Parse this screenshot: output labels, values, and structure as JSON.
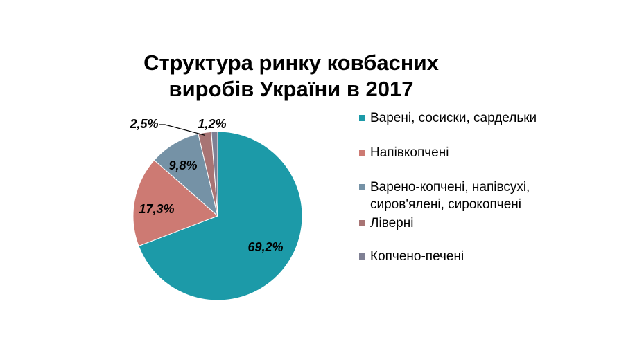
{
  "chart_data": {
    "type": "pie",
    "title_lines": [
      "Структура ринку ковбасних",
      "виробів України в 2017"
    ],
    "slices": [
      {
        "name": "Варені, сосиски, сардельки",
        "value": 69.2,
        "label": "69,2%",
        "color": "#1c9aa8"
      },
      {
        "name": "Напівкопчені",
        "value": 17.3,
        "label": "17,3%",
        "color": "#cd7a73"
      },
      {
        "name": "Варено-копчені, напівсухі, сиров'ялені, сирокопчені",
        "value": 9.8,
        "label": "9,8%",
        "color": "#7592a6"
      },
      {
        "name": "Ліверні",
        "value": 2.5,
        "label": "2,5%",
        "color": "#a87474"
      },
      {
        "name": "Копчено-печені",
        "value": 1.2,
        "label": "1,2%",
        "color": "#7f8094"
      }
    ],
    "legend_position": "right",
    "legend": [
      {
        "text": "Варені, сосиски, сардельки"
      },
      {
        "text": "Напівкопчені"
      },
      {
        "text": "Варено-копчені, напівсухі,\nсиров'ялені, сирокопчені"
      },
      {
        "text": "Ліверні"
      },
      {
        "text": "Копчено-печені"
      }
    ]
  }
}
